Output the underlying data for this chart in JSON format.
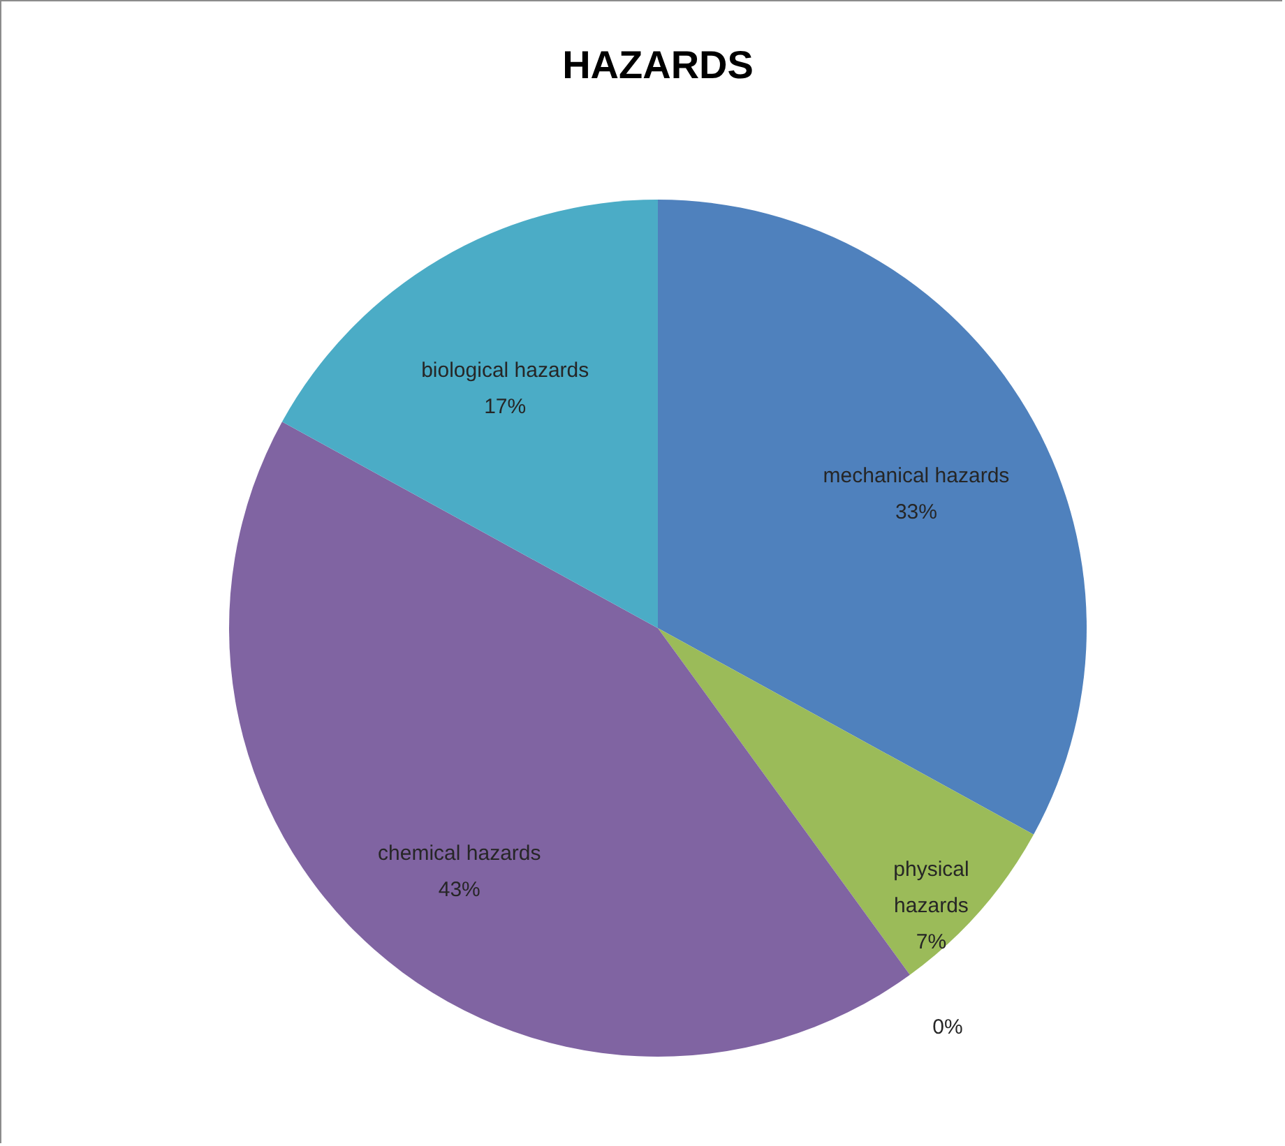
{
  "chart_data": {
    "type": "pie",
    "title": "HAZARDS",
    "categories": [
      "mechanical hazards",
      "physical hazards",
      null,
      "chemical hazards",
      "biological hazards"
    ],
    "values": [
      33,
      7,
      0,
      43,
      17
    ],
    "value_labels": [
      "33%",
      "7%",
      "0%",
      "43%",
      "17%"
    ],
    "colors": [
      "#4f81bd",
      "#9bbb59",
      "#c0504d",
      "#8064a2",
      "#4bacc6"
    ]
  }
}
